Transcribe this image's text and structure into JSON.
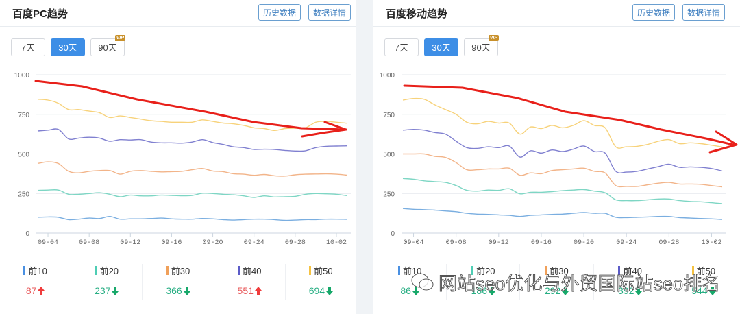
{
  "panels": [
    {
      "title": "百度PC趋势",
      "buttons": {
        "history": "历史数据",
        "details": "数据详情"
      },
      "ranges": [
        {
          "label": "7天",
          "active": false
        },
        {
          "label": "30天",
          "active": true
        },
        {
          "label": "90天",
          "active": false,
          "badge": "VIP"
        }
      ],
      "legend": [
        {
          "name": "前10",
          "color": "#4a90e2",
          "value": "87",
          "trend": "up"
        },
        {
          "name": "前20",
          "color": "#4ecdb4",
          "value": "237",
          "trend": "down"
        },
        {
          "name": "前30",
          "color": "#f0a05a",
          "value": "366",
          "trend": "down"
        },
        {
          "name": "前40",
          "color": "#5b5bc8",
          "value": "551",
          "trend": "up"
        },
        {
          "name": "前50",
          "color": "#f5c242",
          "value": "694",
          "trend": "down"
        }
      ]
    },
    {
      "title": "百度移动趋势",
      "buttons": {
        "history": "历史数据",
        "details": "数据详情"
      },
      "ranges": [
        {
          "label": "7天",
          "active": false
        },
        {
          "label": "30天",
          "active": true
        },
        {
          "label": "90天",
          "active": false,
          "badge": "VIP"
        }
      ],
      "legend": [
        {
          "name": "前10",
          "color": "#4a90e2",
          "value": "86",
          "trend": "down"
        },
        {
          "name": "前20",
          "color": "#4ecdb4",
          "value": "186",
          "trend": "down"
        },
        {
          "name": "前30",
          "color": "#f0a05a",
          "value": "292",
          "trend": "down"
        },
        {
          "name": "前40",
          "color": "#5b5bc8",
          "value": "392",
          "trend": "down"
        },
        {
          "name": "前50",
          "color": "#f5c242",
          "value": "544",
          "trend": "down"
        }
      ]
    }
  ],
  "watermark": "网站seo优化与外贸国际站seo排名",
  "chart_data": [
    {
      "type": "line",
      "title": "百度PC趋势",
      "x": [
        "09-03",
        "09-04",
        "09-05",
        "09-06",
        "09-07",
        "09-08",
        "09-09",
        "09-10",
        "09-11",
        "09-12",
        "09-13",
        "09-14",
        "09-15",
        "09-16",
        "09-17",
        "09-18",
        "09-19",
        "09-20",
        "09-21",
        "09-22",
        "09-23",
        "09-24",
        "09-25",
        "09-26",
        "09-27",
        "09-28",
        "09-29",
        "09-30",
        "10-01",
        "10-02",
        "10-03"
      ],
      "xticks": [
        "09-04",
        "09-08",
        "09-12",
        "09-16",
        "09-20",
        "09-24",
        "09-28",
        "10-02"
      ],
      "yticks": [
        0,
        250,
        500,
        750,
        1000
      ],
      "ylim": [
        0,
        1000
      ],
      "grid": true,
      "series": [
        {
          "name": "前10",
          "color": "#7aaee0",
          "values": [
            100,
            102,
            100,
            85,
            88,
            95,
            92,
            105,
            88,
            90,
            90,
            92,
            95,
            90,
            88,
            88,
            92,
            90,
            85,
            82,
            85,
            88,
            88,
            85,
            80,
            82,
            85,
            85,
            88,
            88,
            87
          ]
        },
        {
          "name": "前20",
          "color": "#7ed6c4",
          "values": [
            270,
            272,
            272,
            245,
            245,
            250,
            255,
            245,
            230,
            240,
            235,
            235,
            240,
            238,
            236,
            238,
            252,
            250,
            245,
            242,
            235,
            225,
            235,
            228,
            230,
            232,
            245,
            250,
            248,
            245,
            237
          ]
        },
        {
          "name": "前30",
          "color": "#f2b489",
          "values": [
            440,
            450,
            440,
            390,
            380,
            390,
            395,
            395,
            372,
            390,
            395,
            390,
            386,
            388,
            390,
            400,
            408,
            392,
            388,
            375,
            372,
            365,
            370,
            362,
            360,
            368,
            372,
            373,
            374,
            372,
            366
          ]
        },
        {
          "name": "前40",
          "color": "#8080d0",
          "values": [
            645,
            650,
            655,
            595,
            600,
            605,
            600,
            580,
            590,
            588,
            590,
            575,
            570,
            570,
            568,
            575,
            590,
            572,
            560,
            545,
            540,
            528,
            530,
            528,
            522,
            518,
            520,
            540,
            548,
            550,
            551
          ]
        },
        {
          "name": "前50",
          "color": "#f7d27a",
          "values": [
            845,
            840,
            820,
            780,
            780,
            770,
            760,
            730,
            740,
            730,
            720,
            710,
            705,
            700,
            700,
            700,
            715,
            705,
            695,
            690,
            680,
            665,
            660,
            648,
            660,
            662,
            665,
            700,
            705,
            700,
            694
          ]
        }
      ]
    },
    {
      "type": "line",
      "title": "百度移动趋势",
      "x": [
        "09-03",
        "09-04",
        "09-05",
        "09-06",
        "09-07",
        "09-08",
        "09-09",
        "09-10",
        "09-11",
        "09-12",
        "09-13",
        "09-14",
        "09-15",
        "09-16",
        "09-17",
        "09-18",
        "09-19",
        "09-20",
        "09-21",
        "09-22",
        "09-23",
        "09-24",
        "09-25",
        "09-26",
        "09-27",
        "09-28",
        "09-29",
        "09-30",
        "10-01",
        "10-02",
        "10-03"
      ],
      "xticks": [
        "09-04",
        "09-08",
        "09-12",
        "09-16",
        "09-20",
        "09-24",
        "09-28",
        "10-02"
      ],
      "yticks": [
        0,
        250,
        500,
        750,
        1000
      ],
      "ylim": [
        0,
        1000
      ],
      "grid": true,
      "series": [
        {
          "name": "前10",
          "color": "#7aaee0",
          "values": [
            155,
            150,
            148,
            145,
            140,
            135,
            125,
            120,
            118,
            115,
            112,
            105,
            112,
            115,
            118,
            120,
            125,
            130,
            125,
            125,
            100,
            98,
            100,
            102,
            105,
            105,
            98,
            95,
            92,
            90,
            86
          ]
        },
        {
          "name": "前20",
          "color": "#7ed6c4",
          "values": [
            345,
            340,
            330,
            325,
            320,
            300,
            270,
            265,
            272,
            270,
            280,
            248,
            258,
            258,
            262,
            268,
            272,
            275,
            265,
            255,
            210,
            205,
            205,
            210,
            215,
            215,
            205,
            200,
            198,
            192,
            186
          ]
        },
        {
          "name": "前30",
          "color": "#f2b489",
          "values": [
            500,
            500,
            500,
            485,
            478,
            445,
            400,
            400,
            405,
            405,
            410,
            365,
            380,
            375,
            395,
            400,
            405,
            410,
            390,
            380,
            300,
            295,
            295,
            305,
            315,
            320,
            310,
            310,
            308,
            300,
            292
          ]
        },
        {
          "name": "前40",
          "color": "#8080d0",
          "values": [
            650,
            655,
            650,
            635,
            625,
            580,
            540,
            535,
            545,
            540,
            550,
            480,
            520,
            505,
            525,
            515,
            530,
            550,
            515,
            505,
            390,
            385,
            390,
            405,
            420,
            435,
            415,
            418,
            415,
            408,
            392
          ]
        },
        {
          "name": "前50",
          "color": "#f7d27a",
          "values": [
            840,
            850,
            845,
            810,
            780,
            750,
            700,
            690,
            705,
            695,
            695,
            625,
            670,
            660,
            680,
            665,
            680,
            710,
            680,
            665,
            545,
            545,
            548,
            560,
            580,
            590,
            565,
            570,
            565,
            555,
            544
          ]
        }
      ]
    }
  ]
}
